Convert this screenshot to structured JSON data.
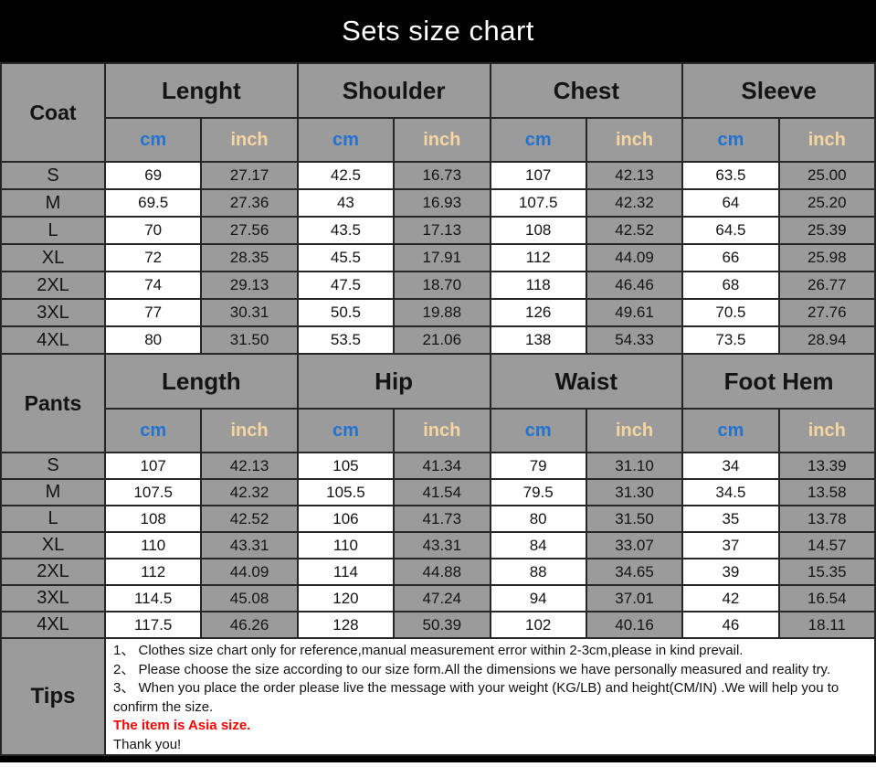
{
  "title": "Sets size chart",
  "colors": {
    "header_gray": "#9b9b9b",
    "cm_blue": "#2272d2",
    "inch_tan": "#f6d6a0",
    "note_red": "#ff0000",
    "title_bg": "#000000"
  },
  "units": {
    "cm": "cm",
    "inch": "inch"
  },
  "coat": {
    "label": "Coat",
    "groups": [
      "Lenght",
      "Shoulder",
      "Chest",
      "Sleeve"
    ],
    "rows": [
      {
        "size": "S",
        "values": [
          "69",
          "27.17",
          "42.5",
          "16.73",
          "107",
          "42.13",
          "63.5",
          "25.00"
        ]
      },
      {
        "size": "M",
        "values": [
          "69.5",
          "27.36",
          "43",
          "16.93",
          "107.5",
          "42.32",
          "64",
          "25.20"
        ]
      },
      {
        "size": "L",
        "values": [
          "70",
          "27.56",
          "43.5",
          "17.13",
          "108",
          "42.52",
          "64.5",
          "25.39"
        ]
      },
      {
        "size": "XL",
        "values": [
          "72",
          "28.35",
          "45.5",
          "17.91",
          "112",
          "44.09",
          "66",
          "25.98"
        ]
      },
      {
        "size": "2XL",
        "values": [
          "74",
          "29.13",
          "47.5",
          "18.70",
          "118",
          "46.46",
          "68",
          "26.77"
        ]
      },
      {
        "size": "3XL",
        "values": [
          "77",
          "30.31",
          "50.5",
          "19.88",
          "126",
          "49.61",
          "70.5",
          "27.76"
        ]
      },
      {
        "size": "4XL",
        "values": [
          "80",
          "31.50",
          "53.5",
          "21.06",
          "138",
          "54.33",
          "73.5",
          "28.94"
        ]
      }
    ]
  },
  "pants": {
    "label": "Pants",
    "groups": [
      "Length",
      "Hip",
      "Waist",
      "Foot Hem"
    ],
    "rows": [
      {
        "size": "S",
        "values": [
          "107",
          "42.13",
          "105",
          "41.34",
          "79",
          "31.10",
          "34",
          "13.39"
        ]
      },
      {
        "size": "M",
        "values": [
          "107.5",
          "42.32",
          "105.5",
          "41.54",
          "79.5",
          "31.30",
          "34.5",
          "13.58"
        ]
      },
      {
        "size": "L",
        "values": [
          "108",
          "42.52",
          "106",
          "41.73",
          "80",
          "31.50",
          "35",
          "13.78"
        ]
      },
      {
        "size": "XL",
        "values": [
          "110",
          "43.31",
          "110",
          "43.31",
          "84",
          "33.07",
          "37",
          "14.57"
        ]
      },
      {
        "size": "2XL",
        "values": [
          "112",
          "44.09",
          "114",
          "44.88",
          "88",
          "34.65",
          "39",
          "15.35"
        ]
      },
      {
        "size": "3XL",
        "values": [
          "114.5",
          "45.08",
          "120",
          "47.24",
          "94",
          "37.01",
          "42",
          "16.54"
        ]
      },
      {
        "size": "4XL",
        "values": [
          "117.5",
          "46.26",
          "128",
          "50.39",
          "102",
          "40.16",
          "46",
          "18.11"
        ]
      }
    ]
  },
  "tips": {
    "label": "Tips",
    "lines": [
      "1、 Clothes size chart only for reference,manual measurement error within 2-3cm,please in kind prevail.",
      "2、 Please choose the size according to our size form.All the dimensions we have personally measured and reality try.",
      "3、 When you place the order please live the message with your weight (KG/LB) and height(CM/IN) .We will help you to confirm the size.",
      "The item is Asia size.",
      "Thank you!"
    ]
  }
}
